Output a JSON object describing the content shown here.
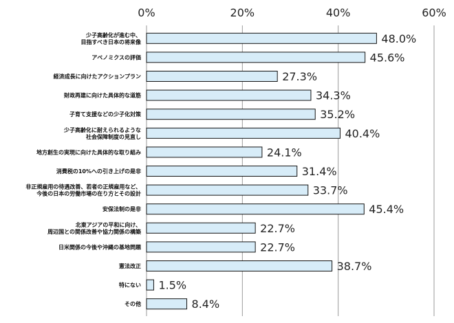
{
  "chart_data": {
    "type": "bar",
    "orientation": "horizontal",
    "xlim": [
      0,
      60
    ],
    "ticks": [
      "0%",
      "20%",
      "40%",
      "60%"
    ],
    "tick_values": [
      0,
      20,
      40,
      60
    ],
    "grid": true,
    "categories": [
      [
        "少子高齢化が進む中、",
        "目指すべき日本の将来像"
      ],
      [
        "アベノミクスの評価"
      ],
      [
        "経済成長に向けたアクションプラン"
      ],
      [
        "財政再建に向けた具体的な道筋"
      ],
      [
        "子育て支援などの少子化対策"
      ],
      [
        "少子高齢化に耐えられるような",
        "社会保障制度の見直し"
      ],
      [
        "地方創生の実現に向けた具体的な取り組み"
      ],
      [
        "消費税の10%への引き上げの是非"
      ],
      [
        "非正規雇用の待遇改善、若者の正規雇用など、",
        "今後の日本の労働市場の在り方とその設計"
      ],
      [
        "安保法制の是非"
      ],
      [
        "北東アジアの平和に向け、",
        "周辺国との関係改善や協力関係の構築"
      ],
      [
        "日米関係の今後や沖縄の基地問題"
      ],
      [
        "憲法改正"
      ],
      [
        "特にない"
      ],
      [
        "その他"
      ]
    ],
    "values": [
      48.0,
      45.6,
      27.3,
      34.3,
      35.2,
      40.4,
      24.1,
      31.4,
      33.7,
      45.4,
      22.7,
      22.7,
      38.7,
      1.5,
      8.4
    ],
    "value_labels": [
      "48.0%",
      "45.6%",
      "27.3%",
      "34.3%",
      "35.2%",
      "40.4%",
      "24.1%",
      "31.4%",
      "33.7%",
      "45.4%",
      "22.7%",
      "22.7%",
      "38.7%",
      "1.5%",
      "8.4%"
    ],
    "bar_color": "#d7ecf8",
    "bar_border_color": "#111111",
    "grid_color": "#9a9a9a"
  }
}
